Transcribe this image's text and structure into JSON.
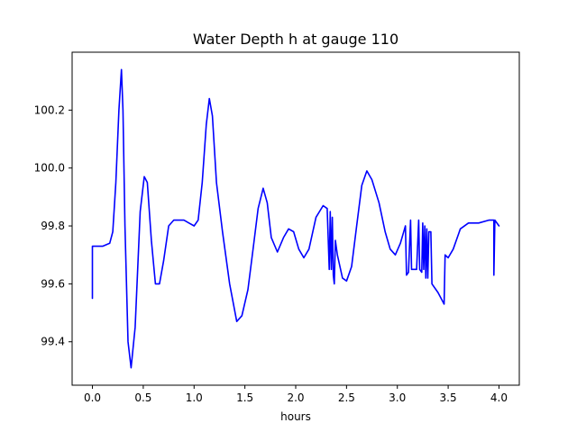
{
  "chart_data": {
    "type": "line",
    "title": "Water Depth h at gauge 110",
    "xlabel": "hours",
    "ylabel": "",
    "xlim": [
      -0.2,
      4.2
    ],
    "ylim": [
      99.25,
      100.4
    ],
    "xticks": [
      0.0,
      0.5,
      1.0,
      1.5,
      2.0,
      2.5,
      3.0,
      3.5,
      4.0
    ],
    "xtick_labels": [
      "0.0",
      "0.5",
      "1.0",
      "1.5",
      "2.0",
      "2.5",
      "3.0",
      "3.5",
      "4.0"
    ],
    "yticks": [
      99.4,
      99.6,
      99.8,
      100.0,
      100.2
    ],
    "ytick_labels": [
      "99.4",
      "99.6",
      "99.8",
      "100.0",
      "100.2"
    ],
    "grid": false,
    "series": [
      {
        "color": "#0000ff",
        "points": [
          [
            0.0,
            99.55
          ],
          [
            0.0,
            99.73
          ],
          [
            0.1,
            99.73
          ],
          [
            0.17,
            99.74
          ],
          [
            0.2,
            99.78
          ],
          [
            0.23,
            99.95
          ],
          [
            0.26,
            100.2
          ],
          [
            0.285,
            100.34
          ],
          [
            0.3,
            100.2
          ],
          [
            0.32,
            99.8
          ],
          [
            0.35,
            99.4
          ],
          [
            0.38,
            99.31
          ],
          [
            0.42,
            99.45
          ],
          [
            0.47,
            99.85
          ],
          [
            0.51,
            99.97
          ],
          [
            0.54,
            99.95
          ],
          [
            0.58,
            99.75
          ],
          [
            0.62,
            99.6
          ],
          [
            0.66,
            99.6
          ],
          [
            0.7,
            99.68
          ],
          [
            0.75,
            99.8
          ],
          [
            0.8,
            99.82
          ],
          [
            0.9,
            99.82
          ],
          [
            0.95,
            99.81
          ],
          [
            1.0,
            99.8
          ],
          [
            1.04,
            99.82
          ],
          [
            1.08,
            99.95
          ],
          [
            1.12,
            100.15
          ],
          [
            1.15,
            100.24
          ],
          [
            1.18,
            100.18
          ],
          [
            1.22,
            99.95
          ],
          [
            1.28,
            99.78
          ],
          [
            1.35,
            99.6
          ],
          [
            1.42,
            99.47
          ],
          [
            1.47,
            99.49
          ],
          [
            1.53,
            99.58
          ],
          [
            1.58,
            99.72
          ],
          [
            1.63,
            99.86
          ],
          [
            1.68,
            99.93
          ],
          [
            1.72,
            99.88
          ],
          [
            1.76,
            99.76
          ],
          [
            1.82,
            99.71
          ],
          [
            1.88,
            99.76
          ],
          [
            1.93,
            99.79
          ],
          [
            1.98,
            99.78
          ],
          [
            2.03,
            99.72
          ],
          [
            2.08,
            99.69
          ],
          [
            2.13,
            99.72
          ],
          [
            2.2,
            99.83
          ],
          [
            2.27,
            99.87
          ],
          [
            2.31,
            99.86
          ],
          [
            2.33,
            99.65
          ],
          [
            2.34,
            99.85
          ],
          [
            2.35,
            99.65
          ],
          [
            2.36,
            99.83
          ],
          [
            2.37,
            99.63
          ],
          [
            2.38,
            99.6
          ],
          [
            2.39,
            99.75
          ],
          [
            2.41,
            99.7
          ],
          [
            2.46,
            99.62
          ],
          [
            2.5,
            99.61
          ],
          [
            2.55,
            99.66
          ],
          [
            2.6,
            99.8
          ],
          [
            2.65,
            99.94
          ],
          [
            2.7,
            99.99
          ],
          [
            2.75,
            99.96
          ],
          [
            2.82,
            99.88
          ],
          [
            2.88,
            99.78
          ],
          [
            2.93,
            99.72
          ],
          [
            2.98,
            99.7
          ],
          [
            3.03,
            99.74
          ],
          [
            3.08,
            99.8
          ],
          [
            3.09,
            99.63
          ],
          [
            3.11,
            99.64
          ],
          [
            3.13,
            99.82
          ],
          [
            3.14,
            99.65
          ],
          [
            3.19,
            99.65
          ],
          [
            3.21,
            99.82
          ],
          [
            3.22,
            99.65
          ],
          [
            3.24,
            99.64
          ],
          [
            3.25,
            99.81
          ],
          [
            3.26,
            99.65
          ],
          [
            3.27,
            99.8
          ],
          [
            3.28,
            99.62
          ],
          [
            3.29,
            99.79
          ],
          [
            3.3,
            99.62
          ],
          [
            3.31,
            99.78
          ],
          [
            3.33,
            99.78
          ],
          [
            3.34,
            99.6
          ],
          [
            3.4,
            99.57
          ],
          [
            3.46,
            99.53
          ],
          [
            3.47,
            99.7
          ],
          [
            3.5,
            99.69
          ],
          [
            3.55,
            99.72
          ],
          [
            3.62,
            99.79
          ],
          [
            3.7,
            99.81
          ],
          [
            3.8,
            99.81
          ],
          [
            3.9,
            99.82
          ],
          [
            3.95,
            99.82
          ],
          [
            3.95,
            99.63
          ],
          [
            3.96,
            99.82
          ],
          [
            4.0,
            99.8
          ]
        ]
      }
    ]
  }
}
